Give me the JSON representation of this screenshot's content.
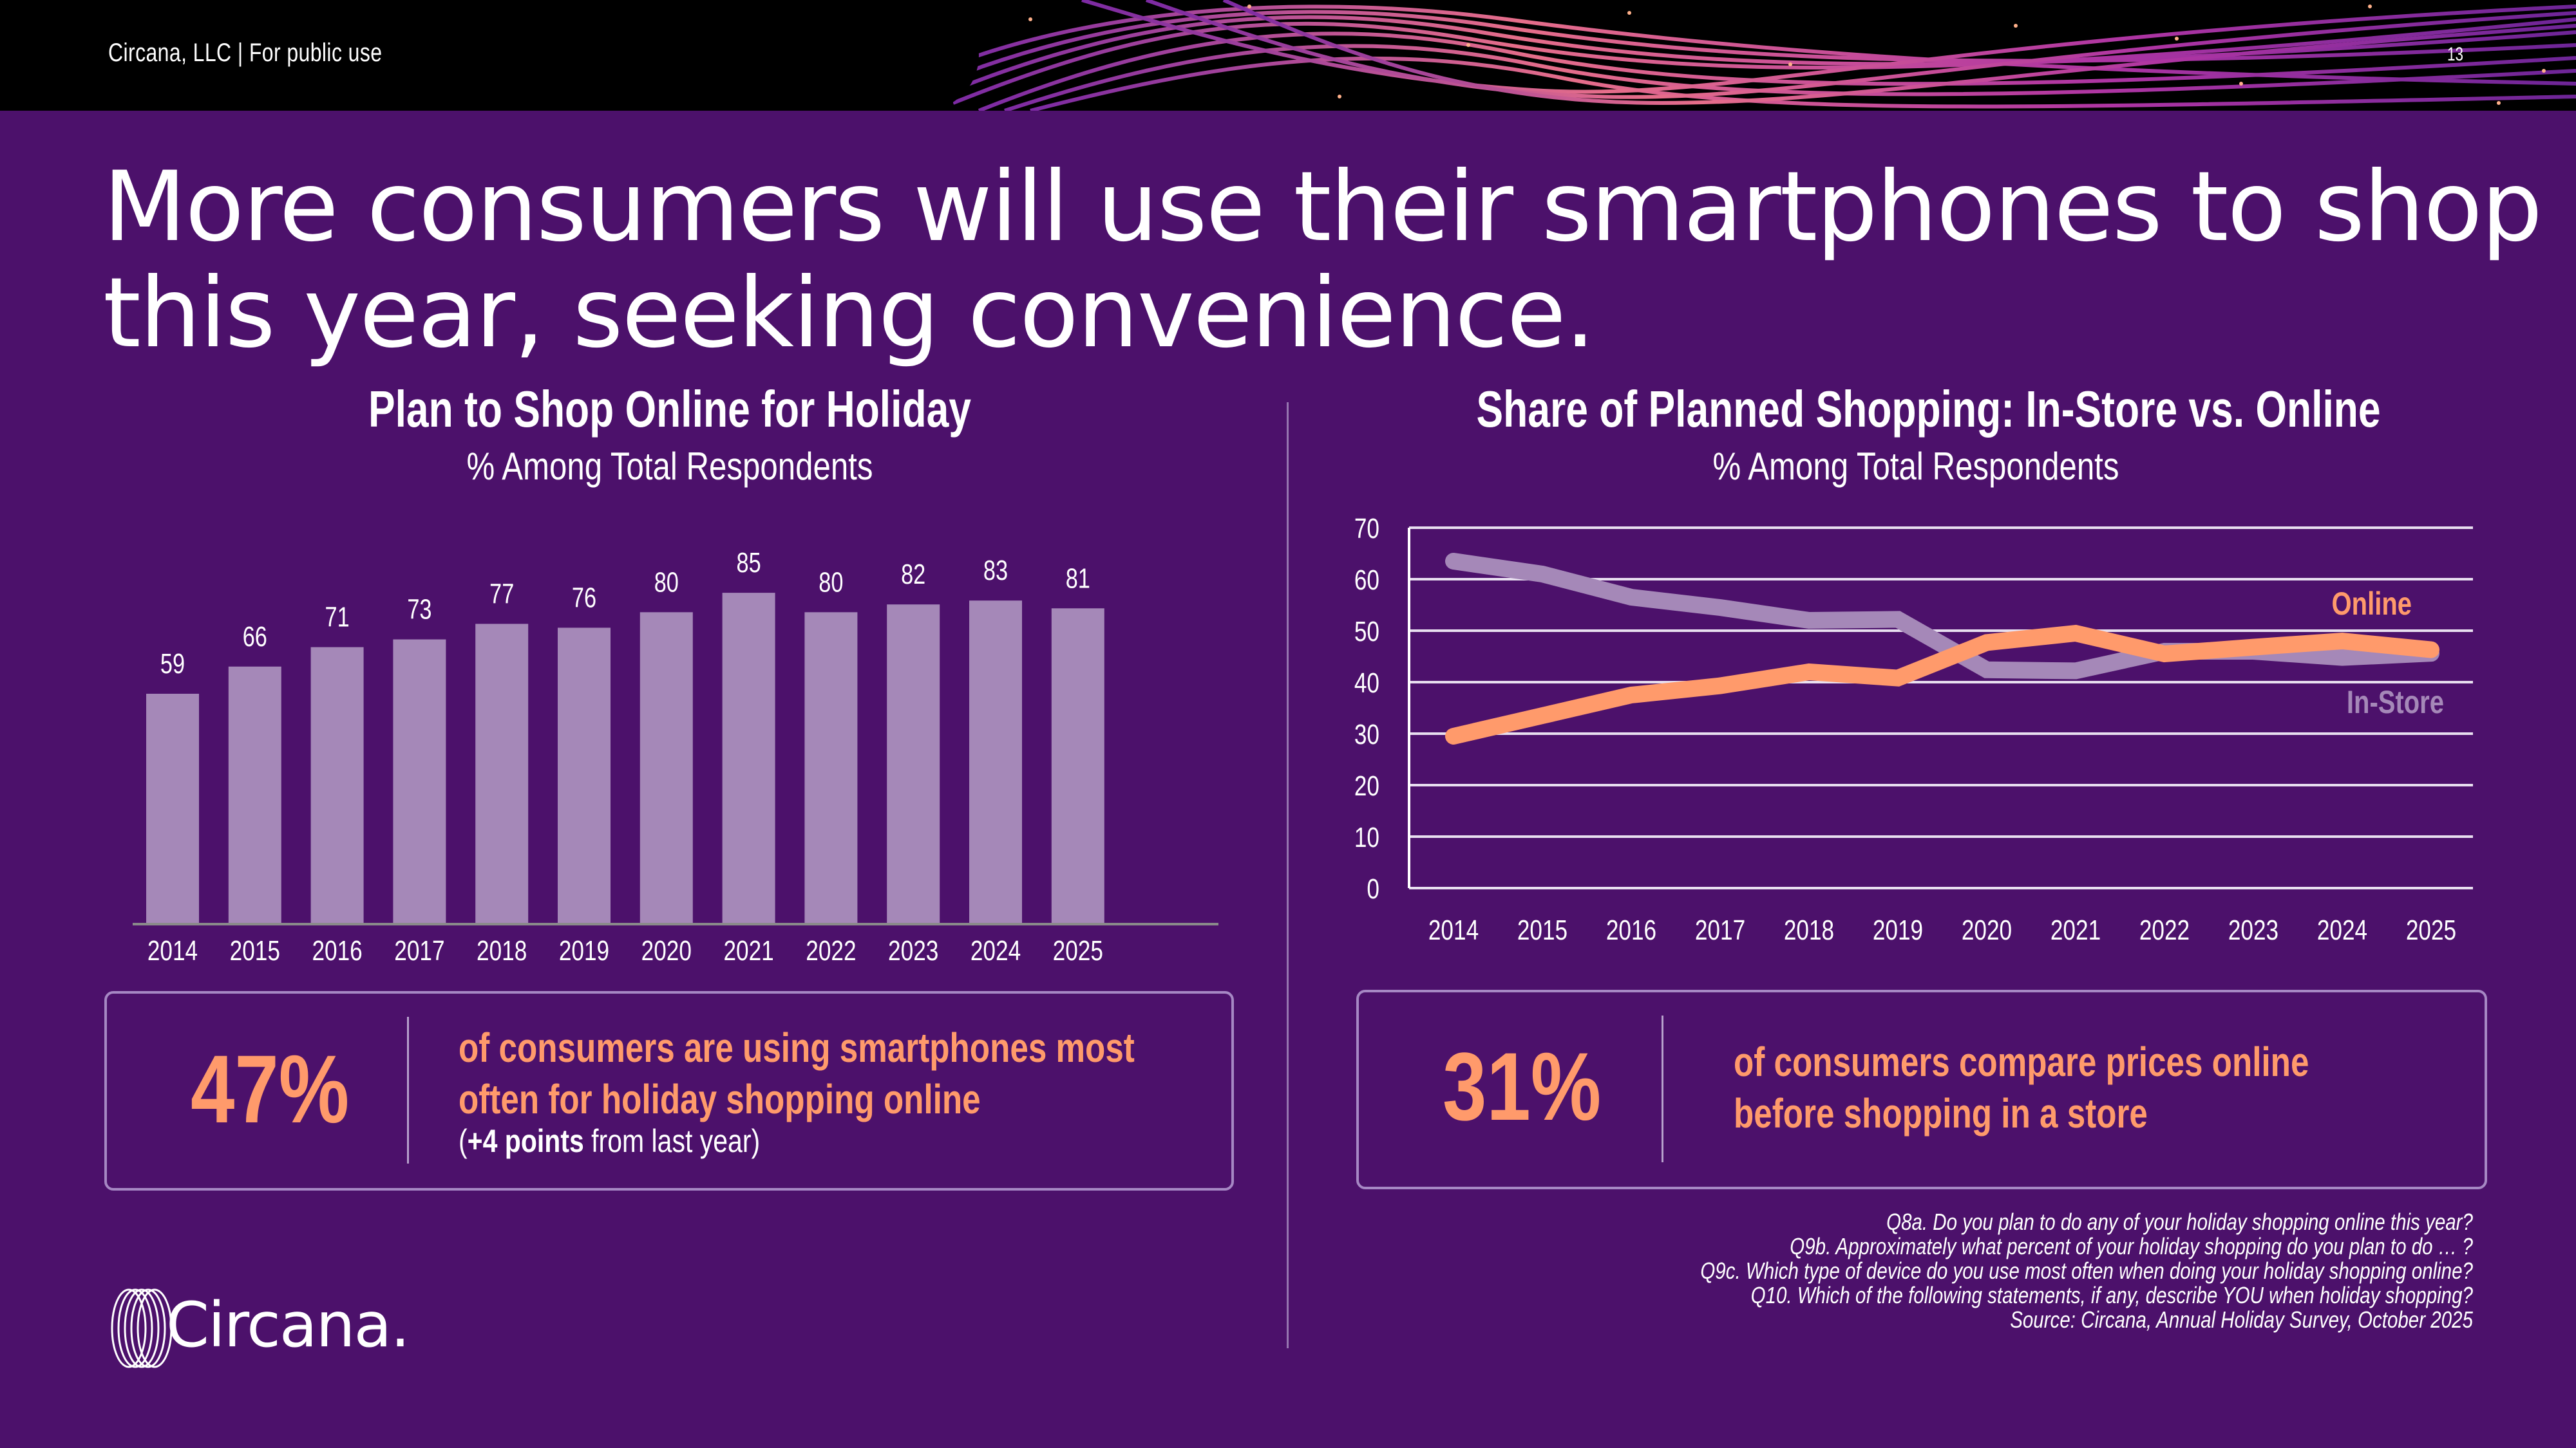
{
  "header": {
    "company_label": "Circana, LLC |  For public use",
    "page_number": "13"
  },
  "title": "More consumers will use their smartphones to shop this year, seeking convenience.",
  "left_panel": {
    "title": "Plan to Shop Online for Holiday",
    "subtitle": "% Among Total Respondents",
    "stat": {
      "value": "47%",
      "text_line1": "of consumers are using smartphones most",
      "text_line2": "often for holiday shopping online",
      "note_open": "(",
      "note_bold": "+4 points",
      "note_rest": " from last year)"
    }
  },
  "right_panel": {
    "title": "Share of Planned Shopping: In-Store vs. Online",
    "subtitle": "% Among Total Respondents",
    "stat": {
      "value": "31%",
      "text_line1": "of consumers compare prices online",
      "text_line2": "before shopping in a store"
    }
  },
  "footnotes": [
    "Q8a. Do you plan to do any of your holiday shopping online this year?",
    "Q9b. Approximately what percent of your holiday shopping do you plan to do … ?",
    "Q9c. Which type of device do you use most often when doing your holiday shopping online?",
    "Q10. Which of the following statements, if any, describe YOU when holiday shopping?",
    "Source: Circana, Annual Holiday Survey, October 2025"
  ],
  "logo": {
    "text": "Circana."
  },
  "colors": {
    "background": "#4c116b",
    "bar": "#a588b8",
    "online": "#ff9a6b",
    "in_store": "#a588b8",
    "gridline": "#e8dff0"
  },
  "chart_data": [
    {
      "type": "bar",
      "title": "Plan to Shop Online for Holiday",
      "subtitle": "% Among Total Respondents",
      "categories": [
        "2014",
        "2015",
        "2016",
        "2017",
        "2018",
        "2019",
        "2020",
        "2021",
        "2022",
        "2023",
        "2024",
        "2025"
      ],
      "values": [
        59,
        66,
        71,
        73,
        77,
        76,
        80,
        85,
        80,
        82,
        83,
        81
      ],
      "data_labels": [
        "59",
        "66",
        "71",
        "73",
        "77",
        "76",
        "80",
        "85",
        "80",
        "82",
        "83",
        "81"
      ],
      "xlabel": "",
      "ylabel": "",
      "ylim": [
        0,
        100
      ],
      "grid": false
    },
    {
      "type": "line",
      "title": "Share of Planned Shopping: In-Store vs. Online",
      "subtitle": "% Among Total Respondents",
      "x": [
        "2014",
        "2015",
        "2016",
        "2017",
        "2018",
        "2019",
        "2020",
        "2021",
        "2022",
        "2023",
        "2024",
        "2025"
      ],
      "series": [
        {
          "name": "Online",
          "values": [
            29.5,
            33.5,
            37.5,
            39.3,
            42,
            40.8,
            47.7,
            49.5,
            45.5,
            46.8,
            48,
            46.3
          ]
        },
        {
          "name": "In-Store",
          "values": [
            63.5,
            61,
            56.5,
            54.5,
            52,
            52.2,
            42.4,
            42.2,
            46,
            46,
            44.8,
            45.6
          ]
        }
      ],
      "yticks": [
        "0",
        "10",
        "20",
        "30",
        "40",
        "50",
        "60",
        "70"
      ],
      "ylim": [
        0,
        70
      ],
      "xlabel": "",
      "ylabel": "",
      "grid": true,
      "legend": "right (inline labels)"
    }
  ]
}
